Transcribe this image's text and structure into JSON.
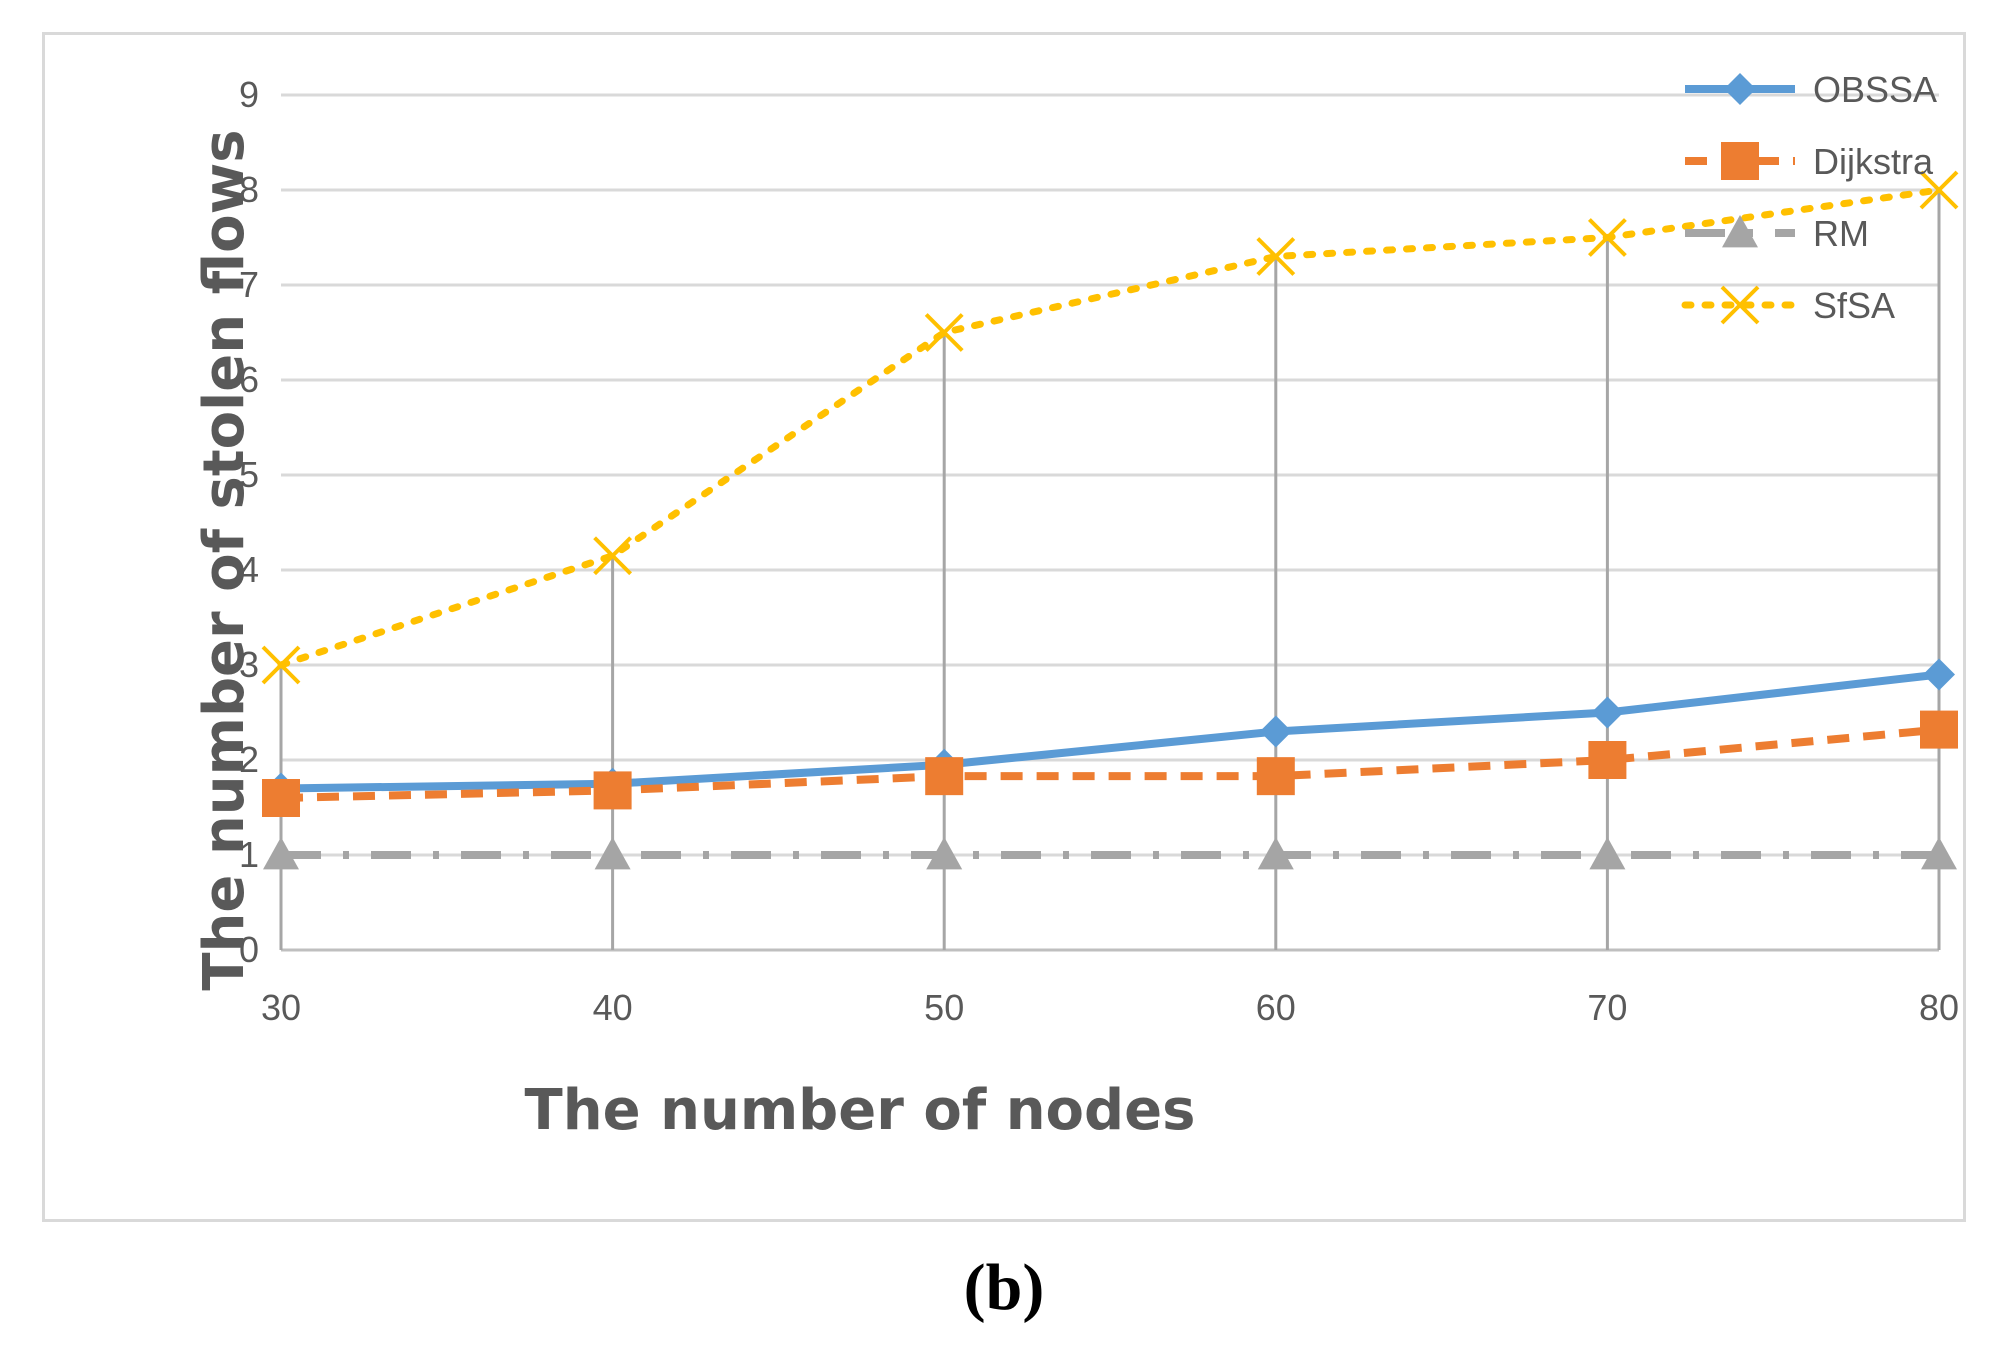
{
  "panel_label": "(b)",
  "chart_data": {
    "type": "line",
    "xlabel": "The number of nodes",
    "ylabel": "The number of stolen flows",
    "categories": [
      "30",
      "40",
      "50",
      "60",
      "70",
      "80"
    ],
    "x": [
      30,
      40,
      50,
      60,
      70,
      80
    ],
    "ylim": [
      0,
      9
    ],
    "yticks": [
      "0",
      "1",
      "2",
      "3",
      "4",
      "5",
      "6",
      "7",
      "8",
      "9"
    ],
    "grid": "horizontal",
    "drop_lines": true,
    "legend_position": "top-right",
    "series": [
      {
        "name": "OBSSA",
        "values": [
          1.7,
          1.75,
          1.95,
          2.3,
          2.5,
          2.9
        ],
        "color": "#5b9bd5",
        "marker": "diamond",
        "line": "solid"
      },
      {
        "name": "Dijkstra",
        "values": [
          1.6,
          1.68,
          1.83,
          1.83,
          2.0,
          2.32
        ],
        "color": "#ed7d31",
        "marker": "square",
        "line": "dashed"
      },
      {
        "name": "RM",
        "values": [
          1.0,
          1.0,
          1.0,
          1.0,
          1.0,
          1.0
        ],
        "color": "#a5a5a5",
        "marker": "triangle",
        "line": "dash-dot"
      },
      {
        "name": "SfSA",
        "values": [
          3.0,
          4.15,
          6.5,
          7.3,
          7.5,
          8.0
        ],
        "color": "#ffc000",
        "marker": "x",
        "line": "dotted"
      }
    ]
  }
}
